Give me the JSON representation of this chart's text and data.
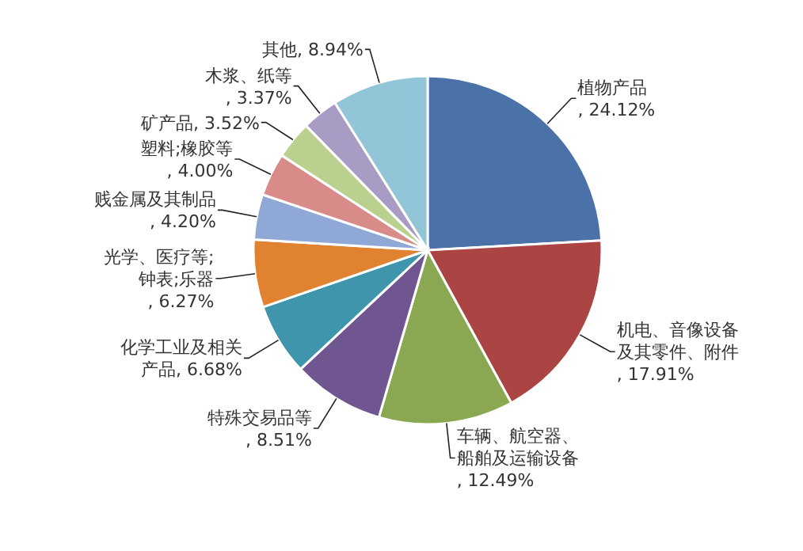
{
  "chart_data": {
    "type": "pie",
    "categories": [
      "植物产品",
      "机电、音像设备及其零件、附件",
      "车辆、航空器、船舶及运输设备",
      "特殊交易品等",
      "化学工业及相关产品",
      "光学、医疗等;钟表;乐器",
      "贱金属及其制品",
      "塑料;橡胶等",
      "矿产品",
      "木浆、纸等",
      "其他"
    ],
    "values": [
      24.12,
      17.91,
      12.49,
      8.51,
      6.68,
      6.27,
      4.2,
      4.0,
      3.52,
      3.37,
      8.94
    ],
    "value_labels": [
      ", 24.12%",
      ", 17.91%",
      ", 12.49%",
      ", 8.51%",
      ", 6.68%",
      ", 6.27%",
      ", 4.20%",
      ", 4.00%",
      ", 3.52%",
      ", 3.37%",
      ", 8.94%"
    ],
    "colors": [
      "#4a71a8",
      "#aa4543",
      "#8aa751",
      "#6f5690",
      "#3f95ab",
      "#e08230",
      "#8fa8d6",
      "#d88b89",
      "#bad08f",
      "#a99cc4",
      "#93c5d8"
    ]
  }
}
